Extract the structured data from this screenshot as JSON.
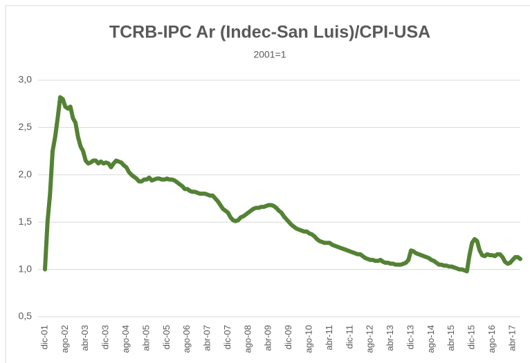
{
  "chart_data": {
    "type": "line",
    "title": "TCRB-IPC Ar (Indec-San Luis)/CPI-USA",
    "subtitle": "2001=1",
    "categories": [
      "dic-01",
      null,
      null,
      null,
      null,
      null,
      null,
      null,
      "ago-02",
      null,
      null,
      null,
      null,
      null,
      null,
      null,
      "abr-03",
      null,
      null,
      null,
      null,
      null,
      null,
      null,
      "dic-03",
      null,
      null,
      null,
      null,
      null,
      null,
      null,
      "ago-04",
      null,
      null,
      null,
      null,
      null,
      null,
      null,
      "abr-05",
      null,
      null,
      null,
      null,
      null,
      null,
      null,
      "dic-05",
      null,
      null,
      null,
      null,
      null,
      null,
      null,
      "ago-06",
      null,
      null,
      null,
      null,
      null,
      null,
      null,
      "abr-07",
      null,
      null,
      null,
      null,
      null,
      null,
      null,
      "dic-07",
      null,
      null,
      null,
      null,
      null,
      null,
      null,
      "ago-08",
      null,
      null,
      null,
      null,
      null,
      null,
      null,
      "abr-09",
      null,
      null,
      null,
      null,
      null,
      null,
      null,
      "dic-09",
      null,
      null,
      null,
      null,
      null,
      null,
      null,
      "ago-10",
      null,
      null,
      null,
      null,
      null,
      null,
      null,
      "abr-11",
      null,
      null,
      null,
      null,
      null,
      null,
      null,
      "dic-11",
      null,
      null,
      null,
      null,
      null,
      null,
      null,
      "ago-12",
      null,
      null,
      null,
      null,
      null,
      null,
      null,
      "abr-13",
      null,
      null,
      null,
      null,
      null,
      null,
      null,
      "dic-13",
      null,
      null,
      null,
      null,
      null,
      null,
      null,
      "ago-14",
      null,
      null,
      null,
      null,
      null,
      null,
      null,
      "abr-15",
      null,
      null,
      null,
      null,
      null,
      null,
      null,
      "dic-15",
      null,
      null,
      null,
      null,
      null,
      null,
      null,
      "ago-16",
      null,
      null,
      null,
      null,
      null,
      null,
      null,
      "abr-17",
      null,
      null,
      null
    ],
    "series": [
      {
        "name": "TCRB-IPC",
        "color": "#548235",
        "values": [
          1.0,
          1.5,
          1.8,
          2.25,
          2.4,
          2.6,
          2.82,
          2.8,
          2.72,
          2.7,
          2.72,
          2.6,
          2.55,
          2.4,
          2.3,
          2.25,
          2.15,
          2.12,
          2.13,
          2.15,
          2.15,
          2.12,
          2.14,
          2.12,
          2.13,
          2.12,
          2.08,
          2.12,
          2.15,
          2.14,
          2.13,
          2.1,
          2.08,
          2.03,
          2.0,
          1.98,
          1.96,
          1.93,
          1.93,
          1.95,
          1.95,
          1.97,
          1.94,
          1.95,
          1.96,
          1.96,
          1.95,
          1.95,
          1.96,
          1.95,
          1.95,
          1.94,
          1.92,
          1.9,
          1.88,
          1.85,
          1.85,
          1.83,
          1.82,
          1.82,
          1.81,
          1.8,
          1.8,
          1.8,
          1.79,
          1.78,
          1.78,
          1.75,
          1.72,
          1.68,
          1.64,
          1.62,
          1.6,
          1.55,
          1.52,
          1.51,
          1.52,
          1.55,
          1.56,
          1.58,
          1.6,
          1.62,
          1.64,
          1.65,
          1.65,
          1.66,
          1.66,
          1.67,
          1.68,
          1.68,
          1.67,
          1.65,
          1.62,
          1.6,
          1.56,
          1.53,
          1.5,
          1.47,
          1.45,
          1.43,
          1.42,
          1.41,
          1.4,
          1.4,
          1.38,
          1.37,
          1.35,
          1.32,
          1.3,
          1.29,
          1.28,
          1.28,
          1.28,
          1.26,
          1.25,
          1.24,
          1.23,
          1.22,
          1.21,
          1.2,
          1.19,
          1.18,
          1.17,
          1.16,
          1.16,
          1.14,
          1.12,
          1.11,
          1.1,
          1.1,
          1.09,
          1.09,
          1.1,
          1.08,
          1.07,
          1.07,
          1.06,
          1.06,
          1.05,
          1.05,
          1.05,
          1.06,
          1.07,
          1.1,
          1.2,
          1.19,
          1.17,
          1.16,
          1.15,
          1.14,
          1.13,
          1.12,
          1.1,
          1.09,
          1.07,
          1.05,
          1.05,
          1.04,
          1.04,
          1.03,
          1.03,
          1.02,
          1.01,
          1.0,
          1.0,
          0.99,
          0.98,
          1.15,
          1.28,
          1.32,
          1.3,
          1.2,
          1.15,
          1.14,
          1.16,
          1.15,
          1.15,
          1.14,
          1.16,
          1.16,
          1.13,
          1.08,
          1.06,
          1.07,
          1.1,
          1.13,
          1.13,
          1.11
        ]
      }
    ],
    "ylim": [
      0.5,
      3.0
    ],
    "yticks": [
      {
        "value": 0.5,
        "label": "0,5"
      },
      {
        "value": 1.0,
        "label": "1,0"
      },
      {
        "value": 1.5,
        "label": "1,5"
      },
      {
        "value": 2.0,
        "label": "2,0"
      },
      {
        "value": 2.5,
        "label": "2,5"
      },
      {
        "value": 3.0,
        "label": "3,0"
      }
    ],
    "grid": true
  }
}
